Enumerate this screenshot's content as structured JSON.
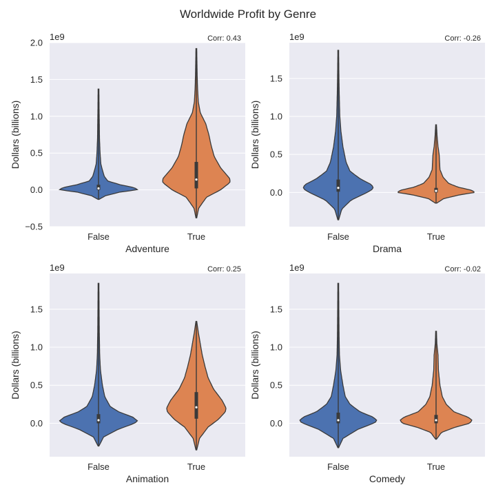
{
  "figure": {
    "title": "Worldwide Profit by Genre"
  },
  "colors": {
    "background": "#eaeaf2",
    "grid": "#ffffff",
    "false_violin": "#4c72b0",
    "true_violin": "#dd8452",
    "violin_edge": "#3a3a3a"
  },
  "chart_data": [
    {
      "type": "violin",
      "categories": [
        "False",
        "True"
      ],
      "xlabel": "Adventure",
      "ylabel": "Dollars (billions)",
      "offset_label": "1e9",
      "corr_label": "Corr: 0.43",
      "ylim": [
        -0.5,
        2.0
      ],
      "yticks": [
        -0.5,
        0.0,
        0.5,
        1.0,
        1.5,
        2.0
      ],
      "ytick_labels": [
        "−0.5",
        "0.0",
        "0.5",
        "1.0",
        "1.5",
        "2.0"
      ],
      "grid": true,
      "violins": [
        {
          "category": "False",
          "min": -0.13,
          "max": 1.37,
          "q1": 0.0,
          "median": 0.02,
          "q3": 0.07,
          "profile": [
            [
              -0.13,
              0.01
            ],
            [
              -0.08,
              0.18
            ],
            [
              -0.03,
              0.55
            ],
            [
              0.0,
              1.0
            ],
            [
              0.03,
              0.92
            ],
            [
              0.07,
              0.55
            ],
            [
              0.12,
              0.24
            ],
            [
              0.18,
              0.15
            ],
            [
              0.25,
              0.11
            ],
            [
              0.35,
              0.06
            ],
            [
              0.5,
              0.04
            ],
            [
              0.7,
              0.025
            ],
            [
              0.9,
              0.02
            ],
            [
              1.1,
              0.015
            ],
            [
              1.37,
              0.01
            ]
          ]
        },
        {
          "category": "True",
          "min": -0.38,
          "max": 1.92,
          "q1": 0.02,
          "median": 0.14,
          "q3": 0.38,
          "profile": [
            [
              -0.38,
              0.01
            ],
            [
              -0.25,
              0.06
            ],
            [
              -0.1,
              0.26
            ],
            [
              0.0,
              0.62
            ],
            [
              0.1,
              0.86
            ],
            [
              0.15,
              0.86
            ],
            [
              0.3,
              0.62
            ],
            [
              0.45,
              0.46
            ],
            [
              0.6,
              0.38
            ],
            [
              0.75,
              0.32
            ],
            [
              0.9,
              0.24
            ],
            [
              1.05,
              0.1
            ],
            [
              1.2,
              0.05
            ],
            [
              1.4,
              0.03
            ],
            [
              1.6,
              0.02
            ],
            [
              1.92,
              0.01
            ]
          ]
        }
      ]
    },
    {
      "type": "violin",
      "categories": [
        "False",
        "True"
      ],
      "xlabel": "Drama",
      "ylabel": "Dollars (billions)",
      "offset_label": "1e9",
      "corr_label": "Corr: -0.26",
      "ylim": [
        -0.45,
        1.97
      ],
      "yticks": [
        0.0,
        0.5,
        1.0,
        1.5
      ],
      "ytick_labels": [
        "0.0",
        "0.5",
        "1.0",
        "1.5"
      ],
      "grid": true,
      "violins": [
        {
          "category": "False",
          "min": -0.36,
          "max": 1.87,
          "q1": 0.01,
          "median": 0.06,
          "q3": 0.17,
          "profile": [
            [
              -0.36,
              0.01
            ],
            [
              -0.22,
              0.09
            ],
            [
              -0.1,
              0.33
            ],
            [
              0.0,
              0.74
            ],
            [
              0.05,
              0.9
            ],
            [
              0.1,
              0.86
            ],
            [
              0.18,
              0.56
            ],
            [
              0.28,
              0.3
            ],
            [
              0.4,
              0.2
            ],
            [
              0.6,
              0.12
            ],
            [
              0.8,
              0.07
            ],
            [
              1.0,
              0.04
            ],
            [
              1.3,
              0.025
            ],
            [
              1.6,
              0.015
            ],
            [
              1.87,
              0.01
            ]
          ]
        },
        {
          "category": "True",
          "min": -0.14,
          "max": 0.89,
          "q1": 0.0,
          "median": 0.02,
          "q3": 0.06,
          "profile": [
            [
              -0.14,
              0.02
            ],
            [
              -0.08,
              0.2
            ],
            [
              -0.03,
              0.62
            ],
            [
              0.0,
              1.0
            ],
            [
              0.03,
              0.9
            ],
            [
              0.07,
              0.56
            ],
            [
              0.12,
              0.32
            ],
            [
              0.2,
              0.18
            ],
            [
              0.3,
              0.1
            ],
            [
              0.4,
              0.09
            ],
            [
              0.5,
              0.08
            ],
            [
              0.6,
              0.05
            ],
            [
              0.75,
              0.025
            ],
            [
              0.89,
              0.01
            ]
          ]
        }
      ]
    },
    {
      "type": "violin",
      "categories": [
        "False",
        "True"
      ],
      "xlabel": "Animation",
      "ylabel": "Dollars (billions)",
      "offset_label": "1e9",
      "corr_label": "Corr: 0.25",
      "ylim": [
        -0.44,
        1.97
      ],
      "yticks": [
        0.0,
        0.5,
        1.0,
        1.5
      ],
      "ytick_labels": [
        "0.0",
        "0.5",
        "1.0",
        "1.5"
      ],
      "grid": true,
      "violins": [
        {
          "category": "False",
          "min": -0.3,
          "max": 1.84,
          "q1": 0.0,
          "median": 0.04,
          "q3": 0.12,
          "profile": [
            [
              -0.3,
              0.01
            ],
            [
              -0.18,
              0.13
            ],
            [
              -0.08,
              0.5
            ],
            [
              0.0,
              0.92
            ],
            [
              0.03,
              1.0
            ],
            [
              0.08,
              0.88
            ],
            [
              0.15,
              0.52
            ],
            [
              0.22,
              0.3
            ],
            [
              0.35,
              0.16
            ],
            [
              0.5,
              0.1
            ],
            [
              0.7,
              0.05
            ],
            [
              0.9,
              0.03
            ],
            [
              1.2,
              0.02
            ],
            [
              1.5,
              0.015
            ],
            [
              1.84,
              0.01
            ]
          ]
        },
        {
          "category": "True",
          "min": -0.35,
          "max": 1.34,
          "q1": 0.06,
          "median": 0.21,
          "q3": 0.41,
          "profile": [
            [
              -0.35,
              0.01
            ],
            [
              -0.2,
              0.08
            ],
            [
              -0.05,
              0.3
            ],
            [
              0.05,
              0.56
            ],
            [
              0.15,
              0.74
            ],
            [
              0.2,
              0.76
            ],
            [
              0.3,
              0.66
            ],
            [
              0.45,
              0.44
            ],
            [
              0.6,
              0.3
            ],
            [
              0.75,
              0.22
            ],
            [
              0.9,
              0.15
            ],
            [
              1.05,
              0.1
            ],
            [
              1.2,
              0.05
            ],
            [
              1.34,
              0.01
            ]
          ]
        }
      ]
    },
    {
      "type": "violin",
      "categories": [
        "False",
        "True"
      ],
      "xlabel": "Comedy",
      "ylabel": "Dollars (billions)",
      "offset_label": "1e9",
      "corr_label": "Corr: -0.02",
      "ylim": [
        -0.44,
        1.97
      ],
      "yticks": [
        0.0,
        0.5,
        1.0,
        1.5
      ],
      "ytick_labels": [
        "0.0",
        "0.5",
        "1.0",
        "1.5"
      ],
      "grid": true,
      "violins": [
        {
          "category": "False",
          "min": -0.32,
          "max": 1.84,
          "q1": 0.0,
          "median": 0.04,
          "q3": 0.14,
          "profile": [
            [
              -0.32,
              0.01
            ],
            [
              -0.2,
              0.12
            ],
            [
              -0.08,
              0.5
            ],
            [
              0.0,
              0.9
            ],
            [
              0.03,
              1.0
            ],
            [
              0.08,
              0.9
            ],
            [
              0.15,
              0.56
            ],
            [
              0.25,
              0.3
            ],
            [
              0.35,
              0.18
            ],
            [
              0.5,
              0.12
            ],
            [
              0.7,
              0.06
            ],
            [
              0.9,
              0.03
            ],
            [
              1.2,
              0.02
            ],
            [
              1.5,
              0.015
            ],
            [
              1.84,
              0.01
            ]
          ]
        },
        {
          "category": "True",
          "min": -0.21,
          "max": 1.21,
          "q1": 0.0,
          "median": 0.04,
          "q3": 0.11,
          "profile": [
            [
              -0.21,
              0.01
            ],
            [
              -0.12,
              0.14
            ],
            [
              -0.05,
              0.5
            ],
            [
              0.0,
              0.86
            ],
            [
              0.04,
              0.92
            ],
            [
              0.08,
              0.82
            ],
            [
              0.15,
              0.46
            ],
            [
              0.25,
              0.26
            ],
            [
              0.35,
              0.16
            ],
            [
              0.5,
              0.1
            ],
            [
              0.7,
              0.06
            ],
            [
              0.9,
              0.05
            ],
            [
              1.05,
              0.02
            ],
            [
              1.21,
              0.01
            ]
          ]
        }
      ]
    }
  ]
}
